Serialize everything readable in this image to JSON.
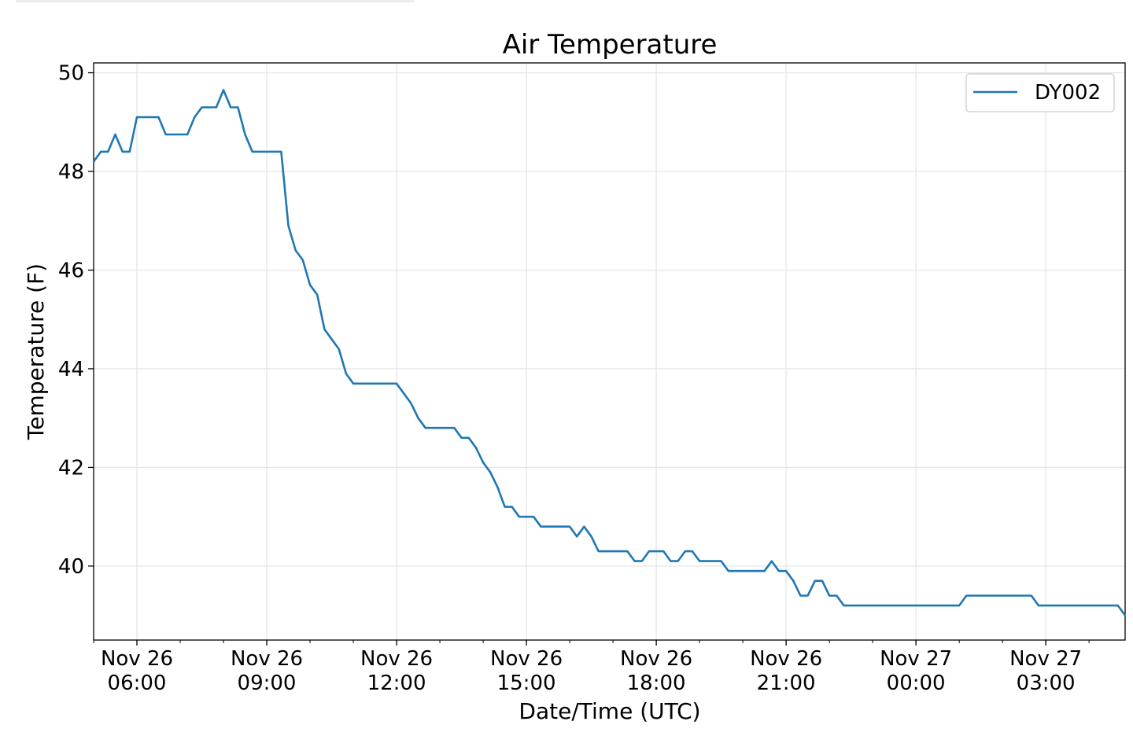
{
  "chart_data": {
    "type": "line",
    "title": "Air Temperature",
    "xlabel": "Date/Time (UTC)",
    "ylabel": "Temperature (F)",
    "xlim": [
      "2016-11-26 05:00",
      "2016-11-27 04:50"
    ],
    "ylim": [
      38.5,
      50.2
    ],
    "yticks": [
      40,
      42,
      44,
      46,
      48,
      50
    ],
    "xticks": [
      {
        "t": "2016-11-26 06:00",
        "label": [
          "Nov 26",
          "06:00"
        ]
      },
      {
        "t": "2016-11-26 09:00",
        "label": [
          "Nov 26",
          "09:00"
        ]
      },
      {
        "t": "2016-11-26 12:00",
        "label": [
          "Nov 26",
          "12:00"
        ]
      },
      {
        "t": "2016-11-26 15:00",
        "label": [
          "Nov 26",
          "15:00"
        ]
      },
      {
        "t": "2016-11-26 18:00",
        "label": [
          "Nov 26",
          "18:00"
        ]
      },
      {
        "t": "2016-11-26 21:00",
        "label": [
          "Nov 26",
          "21:00"
        ]
      },
      {
        "t": "2016-11-27 00:00",
        "label": [
          "Nov 27",
          "00:00"
        ]
      },
      {
        "t": "2016-11-27 03:00",
        "label": [
          "Nov 27",
          "03:00"
        ]
      }
    ],
    "grid": true,
    "legend_position": "upper right",
    "series": [
      {
        "name": "DY002",
        "color": "#1f77b4",
        "x": [
          "2016-11-26 05:00",
          "2016-11-26 05:10",
          "2016-11-26 05:20",
          "2016-11-26 05:30",
          "2016-11-26 05:40",
          "2016-11-26 05:50",
          "2016-11-26 06:00",
          "2016-11-26 06:10",
          "2016-11-26 06:20",
          "2016-11-26 06:30",
          "2016-11-26 06:40",
          "2016-11-26 06:50",
          "2016-11-26 07:00",
          "2016-11-26 07:10",
          "2016-11-26 07:20",
          "2016-11-26 07:30",
          "2016-11-26 07:40",
          "2016-11-26 07:50",
          "2016-11-26 08:00",
          "2016-11-26 08:10",
          "2016-11-26 08:20",
          "2016-11-26 08:30",
          "2016-11-26 08:40",
          "2016-11-26 08:50",
          "2016-11-26 09:00",
          "2016-11-26 09:10",
          "2016-11-26 09:20",
          "2016-11-26 09:30",
          "2016-11-26 09:40",
          "2016-11-26 09:50",
          "2016-11-26 10:00",
          "2016-11-26 10:10",
          "2016-11-26 10:20",
          "2016-11-26 10:30",
          "2016-11-26 10:40",
          "2016-11-26 10:50",
          "2016-11-26 11:00",
          "2016-11-26 11:10",
          "2016-11-26 11:20",
          "2016-11-26 11:30",
          "2016-11-26 11:40",
          "2016-11-26 11:50",
          "2016-11-26 12:00",
          "2016-11-26 12:10",
          "2016-11-26 12:20",
          "2016-11-26 12:30",
          "2016-11-26 12:40",
          "2016-11-26 12:50",
          "2016-11-26 13:00",
          "2016-11-26 13:10",
          "2016-11-26 13:20",
          "2016-11-26 13:30",
          "2016-11-26 13:40",
          "2016-11-26 13:50",
          "2016-11-26 14:00",
          "2016-11-26 14:10",
          "2016-11-26 14:20",
          "2016-11-26 14:30",
          "2016-11-26 14:40",
          "2016-11-26 14:50",
          "2016-11-26 15:00",
          "2016-11-26 15:10",
          "2016-11-26 15:20",
          "2016-11-26 15:30",
          "2016-11-26 15:40",
          "2016-11-26 15:50",
          "2016-11-26 16:00",
          "2016-11-26 16:10",
          "2016-11-26 16:20",
          "2016-11-26 16:30",
          "2016-11-26 16:40",
          "2016-11-26 16:50",
          "2016-11-26 17:00",
          "2016-11-26 17:10",
          "2016-11-26 17:20",
          "2016-11-26 17:30",
          "2016-11-26 17:40",
          "2016-11-26 17:50",
          "2016-11-26 18:00",
          "2016-11-26 18:10",
          "2016-11-26 18:20",
          "2016-11-26 18:30",
          "2016-11-26 18:40",
          "2016-11-26 18:50",
          "2016-11-26 19:00",
          "2016-11-26 19:10",
          "2016-11-26 19:20",
          "2016-11-26 19:30",
          "2016-11-26 19:40",
          "2016-11-26 19:50",
          "2016-11-26 20:00",
          "2016-11-26 20:10",
          "2016-11-26 20:20",
          "2016-11-26 20:30",
          "2016-11-26 20:40",
          "2016-11-26 20:50",
          "2016-11-26 21:00",
          "2016-11-26 21:10",
          "2016-11-26 21:20",
          "2016-11-26 21:30",
          "2016-11-26 21:40",
          "2016-11-26 21:50",
          "2016-11-26 22:00",
          "2016-11-26 22:10",
          "2016-11-26 22:20",
          "2016-11-26 22:30",
          "2016-11-26 22:40",
          "2016-11-26 22:50",
          "2016-11-26 23:00",
          "2016-11-26 23:10",
          "2016-11-26 23:20",
          "2016-11-26 23:30",
          "2016-11-26 23:40",
          "2016-11-26 23:50",
          "2016-11-27 00:00",
          "2016-11-27 00:10",
          "2016-11-27 00:20",
          "2016-11-27 00:30",
          "2016-11-27 00:40",
          "2016-11-27 00:50",
          "2016-11-27 01:00",
          "2016-11-27 01:10",
          "2016-11-27 01:20",
          "2016-11-27 01:30",
          "2016-11-27 01:40",
          "2016-11-27 01:50",
          "2016-11-27 02:00",
          "2016-11-27 02:10",
          "2016-11-27 02:20",
          "2016-11-27 02:30",
          "2016-11-27 02:40",
          "2016-11-27 02:50",
          "2016-11-27 03:00",
          "2016-11-27 03:10",
          "2016-11-27 03:20",
          "2016-11-27 03:30",
          "2016-11-27 03:40",
          "2016-11-27 03:50",
          "2016-11-27 04:00",
          "2016-11-27 04:10",
          "2016-11-27 04:20",
          "2016-11-27 04:30",
          "2016-11-27 04:40",
          "2016-11-27 04:50"
        ],
        "y": [
          48.2,
          48.4,
          48.4,
          48.75,
          48.4,
          48.4,
          49.1,
          49.1,
          49.1,
          49.1,
          48.75,
          48.75,
          48.75,
          48.75,
          49.1,
          49.3,
          49.3,
          49.3,
          49.65,
          49.3,
          49.3,
          48.75,
          48.4,
          48.4,
          48.4,
          48.4,
          48.4,
          46.9,
          46.4,
          46.2,
          45.7,
          45.5,
          44.8,
          44.6,
          44.4,
          43.9,
          43.7,
          43.7,
          43.7,
          43.7,
          43.7,
          43.7,
          43.7,
          43.5,
          43.3,
          43.0,
          42.8,
          42.8,
          42.8,
          42.8,
          42.8,
          42.6,
          42.6,
          42.4,
          42.1,
          41.9,
          41.6,
          41.2,
          41.2,
          41.0,
          41.0,
          41.0,
          40.8,
          40.8,
          40.8,
          40.8,
          40.8,
          40.6,
          40.8,
          40.6,
          40.3,
          40.3,
          40.3,
          40.3,
          40.3,
          40.1,
          40.1,
          40.3,
          40.3,
          40.3,
          40.1,
          40.1,
          40.3,
          40.3,
          40.1,
          40.1,
          40.1,
          40.1,
          39.9,
          39.9,
          39.9,
          39.9,
          39.9,
          39.9,
          40.1,
          39.9,
          39.9,
          39.7,
          39.4,
          39.4,
          39.7,
          39.7,
          39.4,
          39.4,
          39.2,
          39.2,
          39.2,
          39.2,
          39.2,
          39.2,
          39.2,
          39.2,
          39.2,
          39.2,
          39.2,
          39.2,
          39.2,
          39.2,
          39.2,
          39.2,
          39.2,
          39.4,
          39.4,
          39.4,
          39.4,
          39.4,
          39.4,
          39.4,
          39.4,
          39.4,
          39.4,
          39.2,
          39.2,
          39.2,
          39.2,
          39.2,
          39.2,
          39.2,
          39.2,
          39.2,
          39.2,
          39.2,
          39.2,
          39.0
        ]
      }
    ]
  }
}
